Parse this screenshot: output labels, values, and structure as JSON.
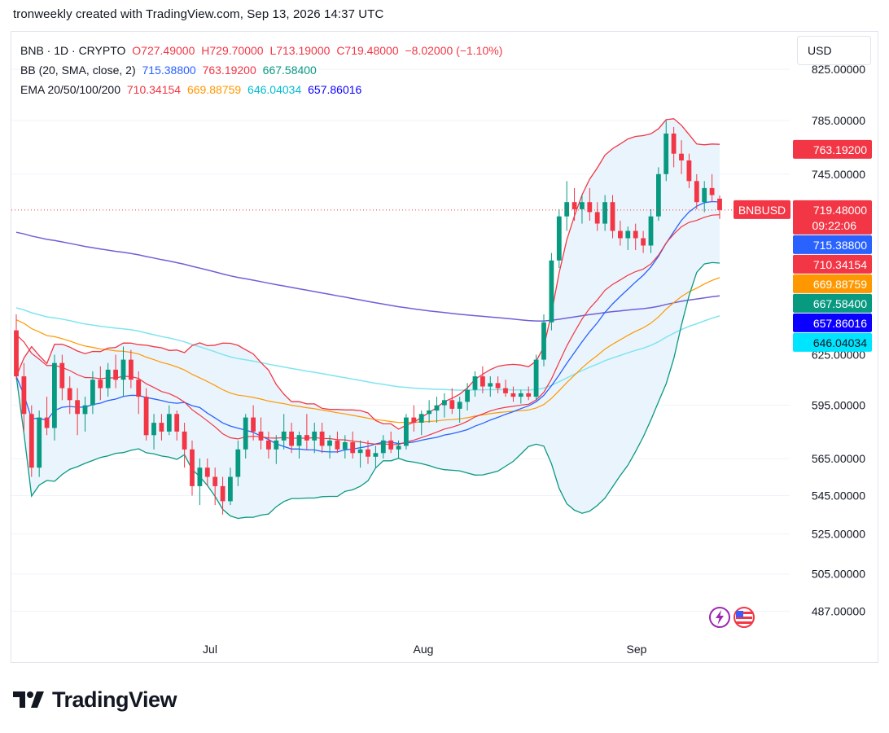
{
  "header": {
    "text": "tronweekly created with TradingView.com, Sep 13, 2026 14:37 UTC"
  },
  "legend": {
    "symbol": "BNB · 1D · CRYPTO",
    "ohlc": {
      "o": "O727.49000",
      "h": "H729.70000",
      "l": "L713.19000",
      "c": "C719.48000",
      "change": "−8.02000 (−1.10%)"
    },
    "bb": {
      "label": "BB (20, SMA, close, 2)",
      "basis": "715.38800",
      "upper": "763.19200",
      "lower": "667.58400"
    },
    "ema": {
      "label": "EMA 20/50/100/200",
      "e20": "710.34154",
      "e50": "669.88759",
      "e100": "646.04034",
      "e200": "657.86016"
    }
  },
  "currency_button": "USD",
  "brand": "TradingView",
  "colors": {
    "up": "#089981",
    "down": "#f23645",
    "bb_upper": "#f23645",
    "bb_basis": "#2962ff",
    "bb_lower": "#089981",
    "ema20": "#f23645",
    "ema50": "#ff9800",
    "ema100": "#7fe5f0",
    "ema200": "#6f5fd8",
    "bb_fill": "#eaf4fc"
  },
  "chart_data": {
    "type": "candlestick",
    "x_axis": {
      "ticks": [
        "Jul",
        "Aug",
        "Sep"
      ]
    },
    "y_axis": {
      "ticks": [
        "825.00000",
        "785.00000",
        "745.00000",
        "595.00000",
        "565.00000",
        "545.00000",
        "525.00000",
        "505.00000",
        "487.00000"
      ],
      "tick_values": [
        825,
        785,
        745,
        595,
        565,
        545,
        525,
        505,
        487
      ],
      "hidden_tick": {
        "label": "625.00000",
        "value": 625
      },
      "range": [
        475,
        855
      ],
      "scale": "log"
    },
    "price_labels": [
      {
        "label": "763.19200",
        "value": 763.192,
        "color": "#f23645"
      },
      {
        "label": "719.48000",
        "sublabel": "09:22:06",
        "tag": "BNBUSD",
        "value": 719.48,
        "color": "#f23645"
      },
      {
        "label": "715.38800",
        "value": 715.388,
        "color": "#2962ff"
      },
      {
        "label": "710.34154",
        "value": 710.34154,
        "color": "#f23645"
      },
      {
        "label": "669.88759",
        "value": 669.88759,
        "color": "#ff9800"
      },
      {
        "label": "667.58400",
        "value": 667.584,
        "color": "#089981"
      },
      {
        "label": "657.86016",
        "value": 657.86016,
        "color": "#0b00ff"
      },
      {
        "label": "646.04034",
        "value": 646.04034,
        "color": "#00e5ff"
      }
    ],
    "candles": [
      [
        640,
        650,
        610,
        612
      ],
      [
        612,
        620,
        580,
        590
      ],
      [
        590,
        595,
        555,
        560
      ],
      [
        560,
        592,
        555,
        588
      ],
      [
        588,
        600,
        578,
        582
      ],
      [
        582,
        625,
        575,
        620
      ],
      [
        620,
        625,
        598,
        605
      ],
      [
        605,
        612,
        590,
        598
      ],
      [
        598,
        605,
        578,
        590
      ],
      [
        590,
        600,
        580,
        595
      ],
      [
        595,
        615,
        590,
        610
      ],
      [
        610,
        618,
        598,
        605
      ],
      [
        605,
        620,
        600,
        616
      ],
      [
        616,
        625,
        605,
        610
      ],
      [
        610,
        630,
        600,
        622
      ],
      [
        622,
        628,
        605,
        610
      ],
      [
        610,
        615,
        590,
        600
      ],
      [
        600,
        605,
        575,
        578
      ],
      [
        578,
        590,
        570,
        585
      ],
      [
        585,
        590,
        575,
        580
      ],
      [
        580,
        595,
        578,
        590
      ],
      [
        590,
        592,
        575,
        580
      ],
      [
        580,
        585,
        560,
        570
      ],
      [
        570,
        575,
        545,
        550
      ],
      [
        550,
        565,
        540,
        560
      ],
      [
        560,
        565,
        550,
        555
      ],
      [
        555,
        560,
        540,
        550
      ],
      [
        550,
        555,
        535,
        542
      ],
      [
        542,
        560,
        540,
        555
      ],
      [
        555,
        575,
        550,
        570
      ],
      [
        570,
        590,
        565,
        588
      ],
      [
        588,
        595,
        575,
        580
      ],
      [
        580,
        588,
        570,
        575
      ],
      [
        575,
        580,
        565,
        570
      ],
      [
        570,
        578,
        562,
        575
      ],
      [
        575,
        590,
        570,
        580
      ],
      [
        580,
        585,
        568,
        572
      ],
      [
        572,
        580,
        565,
        578
      ],
      [
        578,
        590,
        570,
        575
      ],
      [
        575,
        585,
        568,
        580
      ],
      [
        580,
        585,
        568,
        572
      ],
      [
        572,
        578,
        565,
        575
      ],
      [
        575,
        580,
        568,
        570
      ],
      [
        570,
        578,
        565,
        574
      ],
      [
        574,
        580,
        565,
        568
      ],
      [
        568,
        575,
        560,
        570
      ],
      [
        570,
        575,
        562,
        566
      ],
      [
        566,
        572,
        560,
        568
      ],
      [
        568,
        578,
        565,
        575
      ],
      [
        575,
        580,
        568,
        570
      ],
      [
        570,
        575,
        565,
        572
      ],
      [
        572,
        590,
        570,
        588
      ],
      [
        588,
        595,
        580,
        585
      ],
      [
        585,
        592,
        578,
        590
      ],
      [
        590,
        598,
        585,
        592
      ],
      [
        592,
        600,
        585,
        595
      ],
      [
        595,
        602,
        588,
        598
      ],
      [
        598,
        605,
        590,
        593
      ],
      [
        593,
        600,
        585,
        597
      ],
      [
        597,
        608,
        592,
        604
      ],
      [
        604,
        615,
        600,
        612
      ],
      [
        612,
        618,
        602,
        606
      ],
      [
        606,
        612,
        600,
        608
      ],
      [
        608,
        612,
        602,
        605
      ],
      [
        605,
        610,
        600,
        602
      ],
      [
        602,
        606,
        597,
        600
      ],
      [
        600,
        604,
        596,
        602
      ],
      [
        602,
        606,
        598,
        600
      ],
      [
        600,
        625,
        598,
        622
      ],
      [
        622,
        650,
        618,
        645
      ],
      [
        645,
        690,
        640,
        685
      ],
      [
        685,
        720,
        680,
        715
      ],
      [
        715,
        740,
        705,
        725
      ],
      [
        725,
        735,
        712,
        720
      ],
      [
        720,
        730,
        710,
        725
      ],
      [
        725,
        735,
        712,
        718
      ],
      [
        718,
        725,
        705,
        710
      ],
      [
        710,
        730,
        705,
        725
      ],
      [
        725,
        730,
        700,
        705
      ],
      [
        705,
        712,
        695,
        700
      ],
      [
        700,
        708,
        692,
        705
      ],
      [
        705,
        710,
        692,
        700
      ],
      [
        700,
        705,
        690,
        695
      ],
      [
        695,
        720,
        690,
        715
      ],
      [
        715,
        750,
        712,
        745
      ],
      [
        745,
        785,
        740,
        775
      ],
      [
        775,
        780,
        750,
        760
      ],
      [
        760,
        770,
        745,
        755
      ],
      [
        755,
        760,
        735,
        740
      ],
      [
        740,
        745,
        720,
        725
      ],
      [
        725,
        740,
        718,
        735
      ],
      [
        735,
        745,
        725,
        730
      ],
      [
        727.49,
        729.7,
        713.19,
        719.48
      ]
    ]
  }
}
